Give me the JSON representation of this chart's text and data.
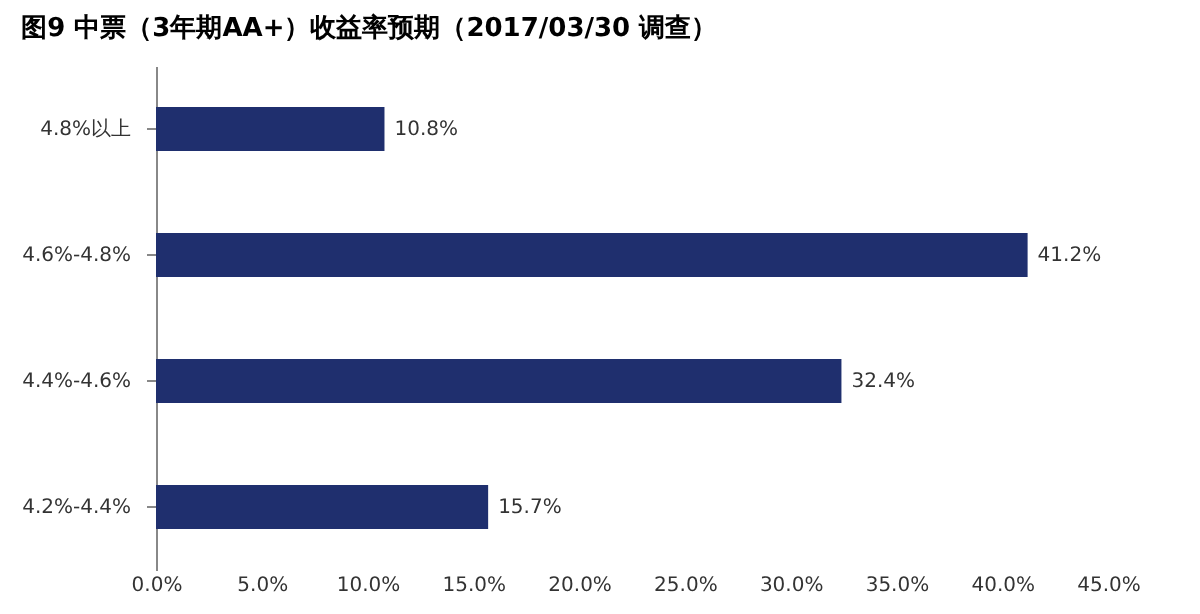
{
  "chart_data": {
    "type": "bar",
    "orientation": "horizontal",
    "title": "图9  中票（3年期AA+）收益率预期（2017/03/30 调查）",
    "categories": [
      "4.8%以上",
      "4.6%-4.8%",
      "4.4%-4.6%",
      "4.2%-4.4%"
    ],
    "values": [
      10.8,
      41.2,
      32.4,
      15.7
    ],
    "value_labels": [
      "10.8%",
      "41.2%",
      "32.4%",
      "15.7%"
    ],
    "color": "#1f2f6e",
    "xlim": [
      0,
      45
    ],
    "xticks": [
      {
        "value": 0,
        "label": "0.0%"
      },
      {
        "value": 5,
        "label": "5.0%"
      },
      {
        "value": 10,
        "label": "10.0%"
      },
      {
        "value": 15,
        "label": "15.0%"
      },
      {
        "value": 20,
        "label": "20.0%"
      },
      {
        "value": 25,
        "label": "25.0%"
      },
      {
        "value": 30,
        "label": "30.0%"
      },
      {
        "value": 35,
        "label": "35.0%"
      },
      {
        "value": 40,
        "label": "40.0%"
      },
      {
        "value": 45,
        "label": "45.0%"
      }
    ],
    "grid": false
  }
}
